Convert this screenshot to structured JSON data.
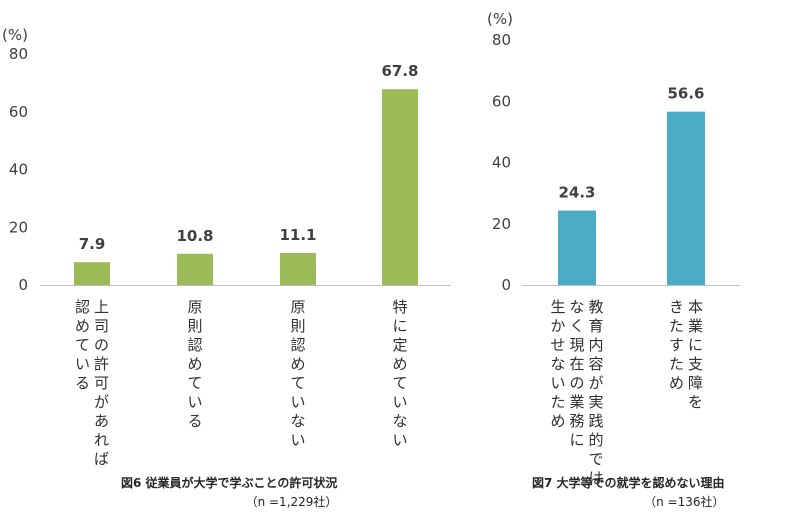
{
  "chart_data": [
    {
      "type": "bar",
      "title": "図6 従業員が大学で学ぶことの許可状況",
      "subtitle": "（n =1,229社）",
      "unit_label": "(%)",
      "ylim": [
        0,
        80
      ],
      "yticks": [
        0,
        20,
        40,
        60,
        80
      ],
      "categories": [
        "上司の許可があれば|認めている",
        "原則認めている",
        "原則認めていない",
        "特に定めていない"
      ],
      "values": [
        7.9,
        10.8,
        11.1,
        67.8
      ],
      "value_labels": [
        "7.9",
        "10.8",
        "11.1",
        "67.8"
      ],
      "bar_color": "#9BBB59",
      "grid": false
    },
    {
      "type": "bar",
      "title": "図7 大学等での就学を認めない理由",
      "subtitle": "（n =136社）",
      "unit_label": "(%)",
      "ylim": [
        0,
        80
      ],
      "yticks": [
        0,
        20,
        40,
        60,
        80
      ],
      "categories": [
        "教育内容が実践的では|なく現在の業務に|生かせないため",
        "本業に支障を|きたすため"
      ],
      "values": [
        24.3,
        56.6
      ],
      "value_labels": [
        "24.3",
        "56.6"
      ],
      "bar_color": "#4BACC6",
      "grid": false
    }
  ]
}
